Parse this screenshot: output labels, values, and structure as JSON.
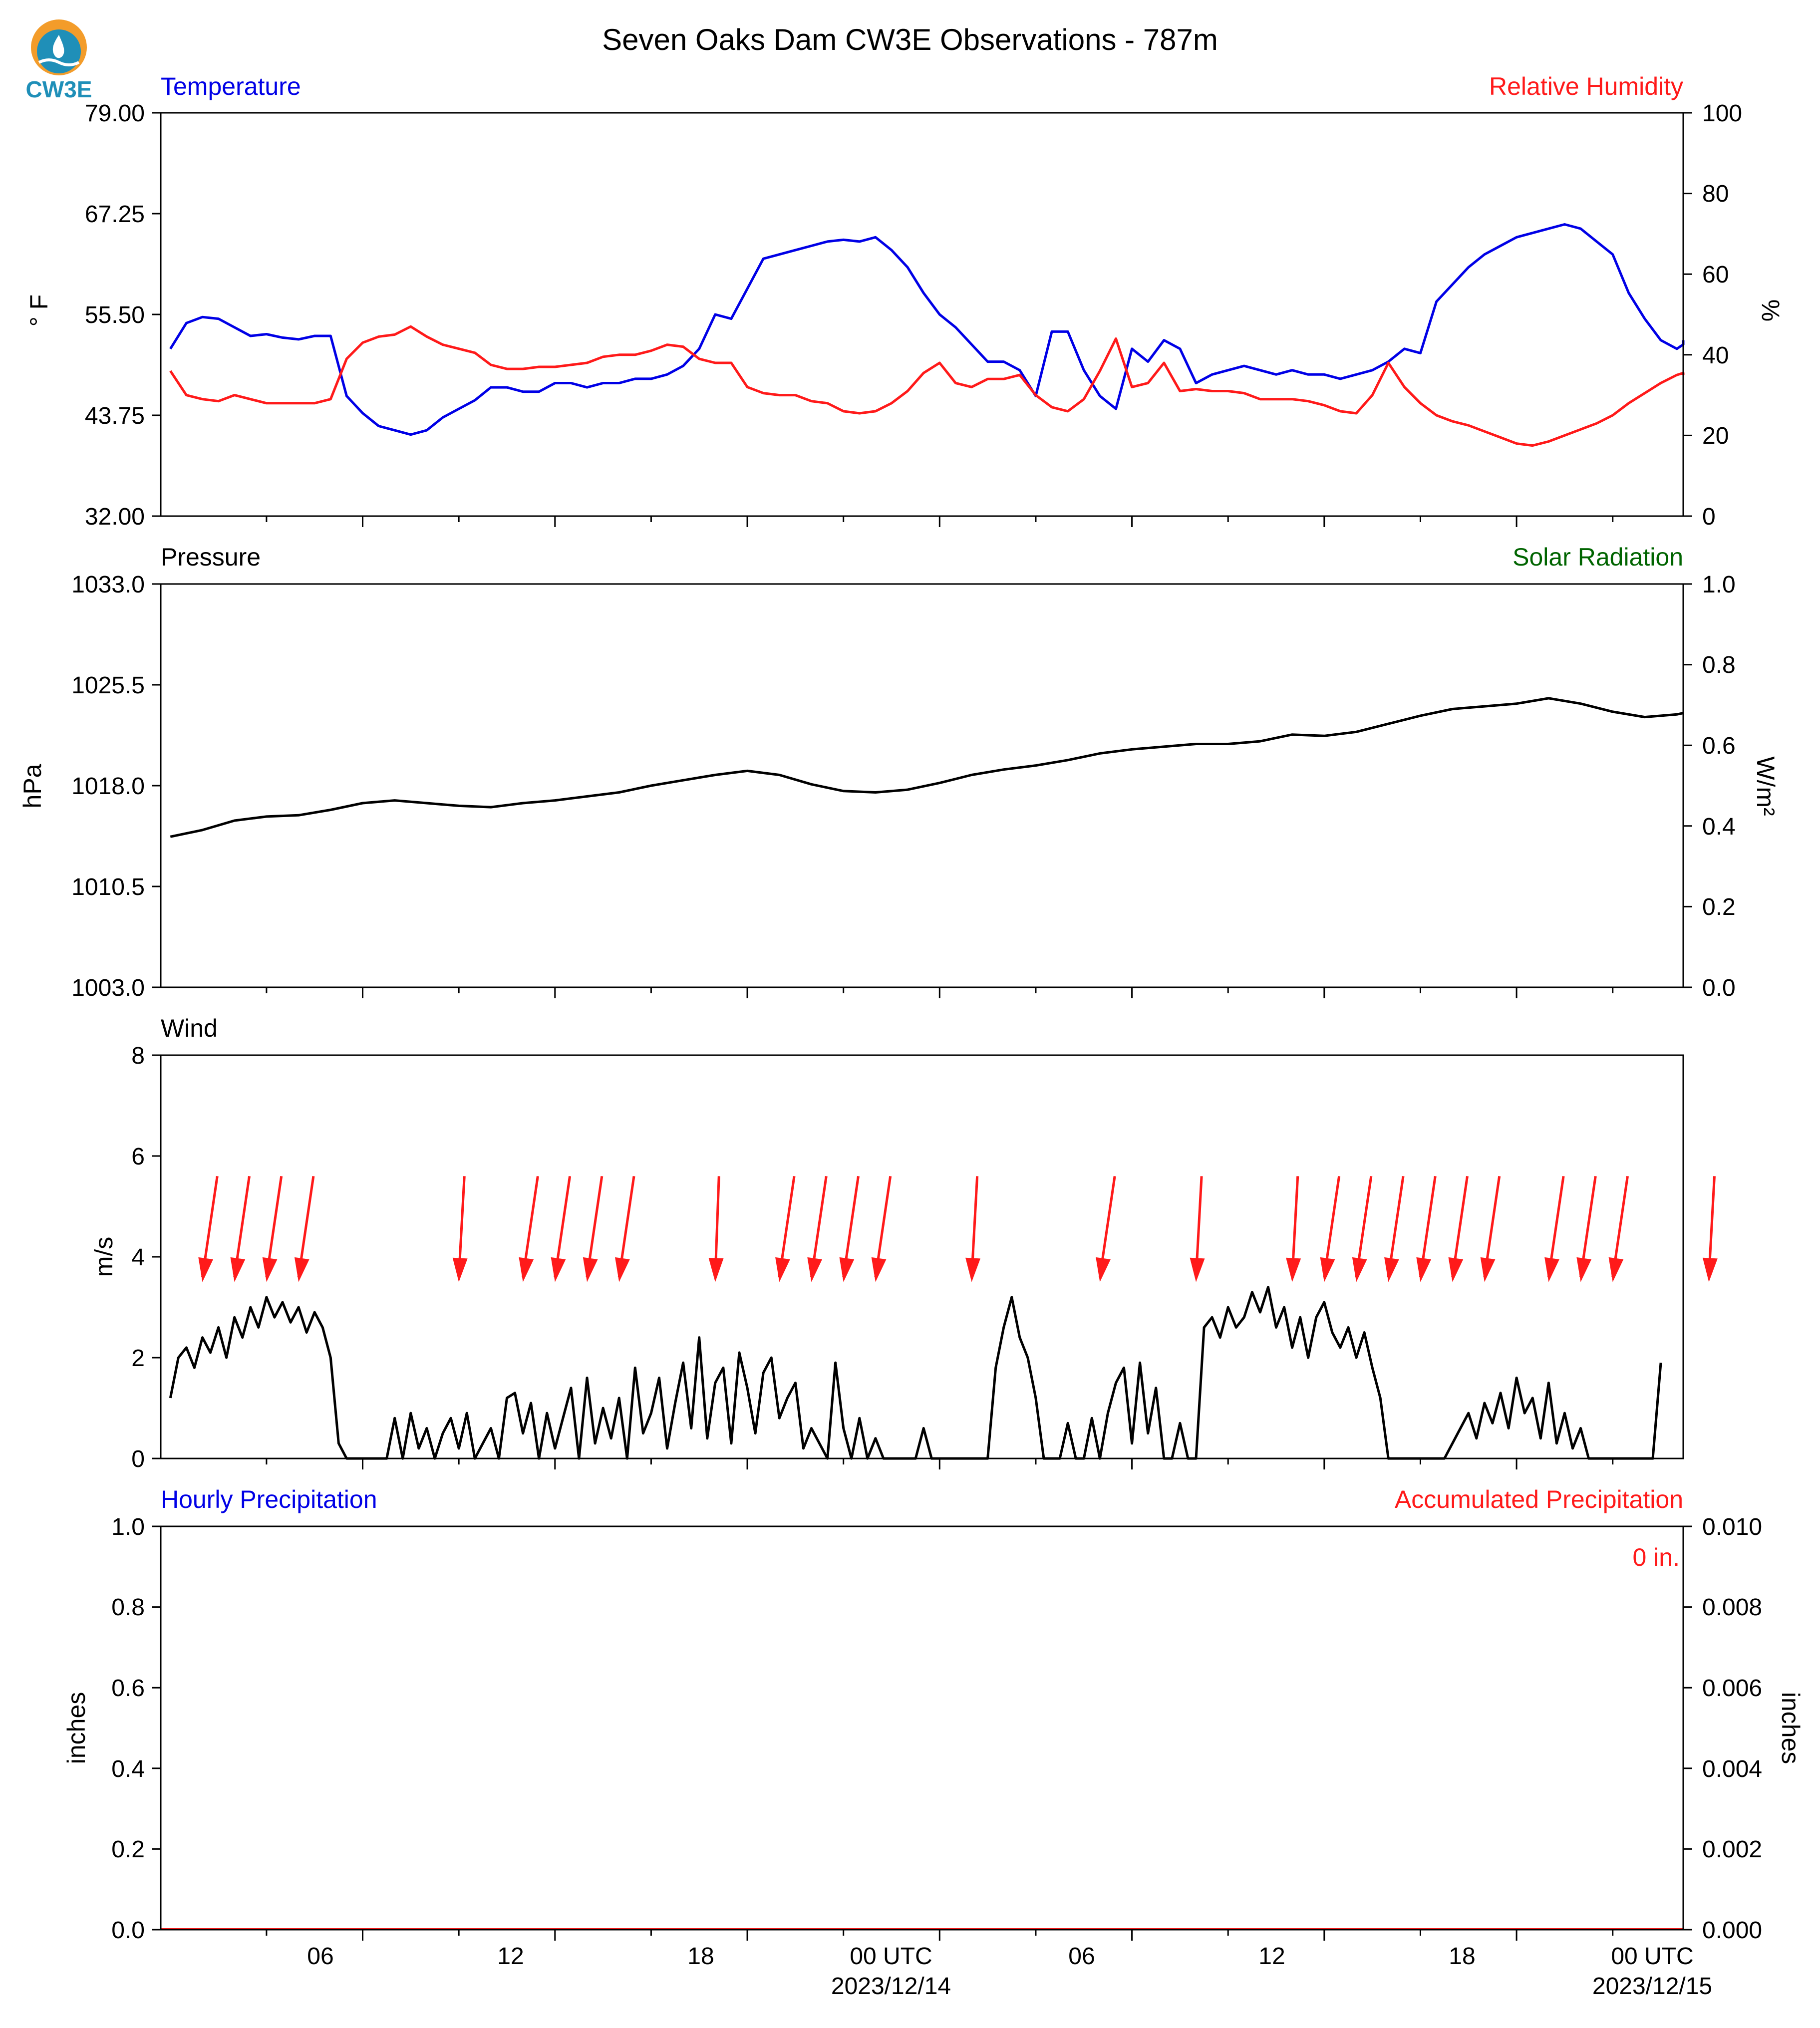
{
  "title": "Seven Oaks Dam CW3E Observations - 787m",
  "logo": {
    "text": "CW3E",
    "icon": "cw3e-water-drop-logo"
  },
  "colors": {
    "blue": "#0000e6",
    "red": "#ff1a1a",
    "green": "#006400",
    "black": "#000000",
    "arrow": "#ff1a1a",
    "logo_orange": "#f39c2a",
    "logo_teal": "#1f8fb8"
  },
  "x_axis": {
    "tick_labels": [
      "06",
      "12",
      "18",
      "00 UTC",
      "06",
      "12",
      "18",
      "00 UTC"
    ],
    "date_labels": [
      "2023/12/14",
      "2023/12/15"
    ]
  },
  "chart_data": [
    {
      "type": "line",
      "panel": "temperature-humidity",
      "title_left": "Temperature",
      "title_right": "Relative Humidity",
      "ylabel_left": "° F",
      "ylabel_right": "%",
      "ylim_left": [
        32,
        79
      ],
      "ylim_right": [
        0,
        100
      ],
      "yticks_left": [
        "79.00",
        "67.25",
        "55.50",
        "43.75",
        "32.00"
      ],
      "yticks_right": [
        "100",
        "80",
        "60",
        "40",
        "20",
        "0"
      ],
      "x_hours": [
        0,
        0.5,
        1,
        1.5,
        2,
        2.5,
        3,
        3.5,
        4,
        4.5,
        5,
        5.5,
        6,
        6.5,
        7,
        7.5,
        8,
        8.5,
        9,
        9.5,
        10,
        10.5,
        11,
        11.5,
        12,
        12.5,
        13,
        13.5,
        14,
        14.5,
        15,
        15.5,
        16,
        16.5,
        17,
        17.5,
        18,
        18.5,
        19,
        19.5,
        20,
        20.5,
        21,
        21.5,
        22,
        22.5,
        23,
        23.5,
        24,
        24.5,
        25,
        25.5,
        26,
        26.5,
        27,
        27.5,
        28,
        28.5,
        29,
        29.5,
        30,
        30.5,
        31,
        31.5,
        32,
        32.5,
        33,
        33.5,
        34,
        34.5,
        35,
        35.5,
        36,
        36.5,
        37,
        37.5,
        38,
        38.5,
        39,
        39.5,
        40,
        40.5,
        41,
        41.5,
        42,
        42.5,
        43,
        43.5,
        44,
        44.5,
        45,
        45.5,
        46,
        46.5,
        47,
        47.5,
        48
      ],
      "series": [
        {
          "name": "Temperature",
          "axis": "left",
          "color": "#0000e6",
          "values": [
            51.5,
            54.5,
            55.2,
            55.0,
            54.0,
            53.0,
            53.2,
            52.8,
            52.6,
            53.0,
            53.0,
            46.0,
            44.0,
            42.5,
            42.0,
            41.5,
            42.0,
            43.5,
            44.5,
            45.5,
            47.0,
            47.0,
            46.5,
            46.5,
            47.5,
            47.5,
            47.0,
            47.5,
            47.5,
            48.0,
            48.0,
            48.5,
            49.5,
            51.5,
            55.5,
            55.0,
            58.5,
            62.0,
            62.5,
            63.0,
            63.5,
            64.0,
            64.2,
            64.0,
            64.5,
            63.0,
            61.0,
            58.0,
            55.5,
            54.0,
            52.0,
            50.0,
            50.0,
            49.0,
            46.0,
            53.5,
            53.5,
            49.0,
            46.0,
            44.5,
            51.5,
            50.0,
            52.5,
            51.5,
            47.5,
            48.5,
            49.0,
            49.5,
            49.0,
            48.5,
            49.0,
            48.5,
            48.5,
            48.0,
            48.5,
            49.0,
            50.0,
            51.5,
            51.0,
            57.0,
            59.0,
            61.0,
            62.5,
            63.5,
            64.5,
            65.0,
            65.5,
            66.0,
            65.5,
            64.0,
            62.5,
            58.0,
            55.0,
            52.5,
            51.5,
            52.0,
            52.5
          ]
        },
        {
          "name": "Relative Humidity",
          "axis": "right",
          "color": "#ff1a1a",
          "values": [
            36.0,
            30.0,
            29.0,
            28.5,
            30.0,
            29.0,
            28.0,
            28.0,
            28.0,
            28.0,
            29.0,
            39.0,
            43.0,
            44.5,
            45.0,
            47.0,
            44.5,
            42.5,
            41.5,
            40.5,
            37.5,
            36.5,
            36.5,
            37.0,
            37.0,
            37.5,
            38.0,
            39.5,
            40.0,
            40.0,
            41.0,
            42.5,
            42.0,
            39.0,
            38.0,
            38.0,
            32.0,
            30.5,
            30.0,
            30.0,
            28.5,
            28.0,
            26.0,
            25.5,
            26.0,
            28.0,
            31.0,
            35.5,
            38.0,
            33.0,
            32.0,
            34.0,
            34.0,
            35.0,
            30.0,
            27.0,
            26.0,
            29.0,
            36.0,
            44.0,
            32.0,
            33.0,
            38.0,
            31.0,
            31.5,
            31.0,
            31.0,
            30.5,
            29.0,
            29.0,
            29.0,
            28.5,
            27.5,
            26.0,
            25.5,
            30.0,
            38.0,
            32.0,
            28.0,
            25.0,
            23.5,
            22.5,
            21.0,
            19.5,
            18.0,
            17.5,
            18.5,
            20.0,
            21.5,
            23.0,
            25.0,
            28.0,
            30.5,
            33.0,
            35.0,
            35.5,
            35.0
          ]
        }
      ]
    },
    {
      "type": "line",
      "panel": "pressure-solar",
      "title_left": "Pressure",
      "title_right": "Solar Radiation",
      "ylabel_left": "hPa",
      "ylabel_right": "W/m²",
      "ylim_left": [
        1003.0,
        1033.0
      ],
      "ylim_right": [
        0.0,
        1.0
      ],
      "yticks_left": [
        "1033.0",
        "1025.5",
        "1018.0",
        "1010.5",
        "1003.0"
      ],
      "yticks_right": [
        "1.0",
        "0.8",
        "0.6",
        "0.4",
        "0.2",
        "0.0"
      ],
      "x_hours": [
        0,
        1,
        2,
        3,
        4,
        5,
        6,
        7,
        8,
        9,
        10,
        11,
        12,
        13,
        14,
        15,
        16,
        17,
        18,
        19,
        20,
        21,
        22,
        23,
        24,
        25,
        26,
        27,
        28,
        29,
        30,
        31,
        32,
        33,
        34,
        35,
        36,
        37,
        38,
        39,
        40,
        41,
        42,
        43,
        44,
        45,
        46,
        47,
        48
      ],
      "series": [
        {
          "name": "Pressure",
          "axis": "left",
          "color": "#000000",
          "values": [
            1014.2,
            1014.7,
            1015.4,
            1015.7,
            1015.8,
            1016.2,
            1016.7,
            1016.9,
            1016.7,
            1016.5,
            1016.4,
            1016.7,
            1016.9,
            1017.2,
            1017.5,
            1018.0,
            1018.4,
            1018.8,
            1019.1,
            1018.8,
            1018.1,
            1017.6,
            1017.5,
            1017.7,
            1018.2,
            1018.8,
            1019.2,
            1019.5,
            1019.9,
            1020.4,
            1020.7,
            1020.9,
            1021.1,
            1021.1,
            1021.3,
            1021.8,
            1021.7,
            1022.0,
            1022.6,
            1023.2,
            1023.7,
            1023.9,
            1024.1,
            1024.5,
            1024.1,
            1023.5,
            1023.1,
            1023.3,
            1023.4
          ]
        }
      ]
    },
    {
      "type": "line",
      "panel": "wind",
      "title_left": "Wind",
      "ylabel_left": "m/s",
      "ylim_left": [
        0,
        8
      ],
      "yticks_left": [
        "8",
        "6",
        "4",
        "2",
        "0"
      ],
      "x_hours": [
        0,
        0.25,
        0.5,
        0.75,
        1,
        1.25,
        1.5,
        1.75,
        2,
        2.25,
        2.5,
        2.75,
        3,
        3.25,
        3.5,
        3.75,
        4,
        4.25,
        4.5,
        4.75,
        5,
        5.25,
        5.5,
        5.75,
        6,
        6.25,
        6.5,
        6.75,
        7,
        7.25,
        7.5,
        7.75,
        8,
        8.25,
        8.5,
        8.75,
        9,
        9.25,
        9.5,
        9.75,
        10,
        10.25,
        10.5,
        10.75,
        11,
        11.25,
        11.5,
        11.75,
        12,
        12.25,
        12.5,
        12.75,
        13,
        13.25,
        13.5,
        13.75,
        14,
        14.25,
        14.5,
        14.75,
        15,
        15.25,
        15.5,
        15.75,
        16,
        16.25,
        16.5,
        16.75,
        17,
        17.25,
        17.5,
        17.75,
        18,
        18.25,
        18.5,
        18.75,
        19,
        19.25,
        19.5,
        19.75,
        20,
        20.25,
        20.5,
        20.75,
        21,
        21.25,
        21.5,
        21.75,
        22,
        22.25,
        22.5,
        22.75,
        23,
        23.25,
        23.5,
        23.75,
        24,
        24.25,
        24.5,
        24.75,
        25,
        25.25,
        25.5,
        25.75,
        26,
        26.25,
        26.5,
        26.75,
        27,
        27.25,
        27.5,
        27.75,
        28,
        28.25,
        28.5,
        28.75,
        29,
        29.25,
        29.5,
        29.75,
        30,
        30.25,
        30.5,
        30.75,
        31,
        31.25,
        31.5,
        31.75,
        32,
        32.25,
        32.5,
        32.75,
        33,
        33.25,
        33.5,
        33.75,
        34,
        34.25,
        34.5,
        34.75,
        35,
        35.25,
        35.5,
        35.75,
        36,
        36.25,
        36.5,
        36.75,
        37,
        37.25,
        37.5,
        37.75,
        38,
        38.25,
        38.5,
        38.75,
        39,
        39.25,
        39.5,
        39.75,
        40,
        40.25,
        40.5,
        40.75,
        41,
        41.25,
        41.5,
        41.75,
        42,
        42.25,
        42.5,
        42.75,
        43,
        43.25,
        43.5,
        43.75,
        44,
        44.25,
        44.5,
        44.75,
        45,
        45.25,
        45.5,
        45.75,
        46,
        46.25,
        46.5,
        46.75,
        47,
        47.25,
        47.5,
        47.75,
        48
      ],
      "series": [
        {
          "name": "Wind Speed",
          "axis": "left",
          "color": "#000000",
          "values": [
            1.2,
            2.0,
            2.2,
            1.8,
            2.4,
            2.1,
            2.6,
            2.0,
            2.8,
            2.4,
            3.0,
            2.6,
            3.2,
            2.8,
            3.1,
            2.7,
            3.0,
            2.5,
            2.9,
            2.6,
            2.0,
            0.3,
            0,
            0,
            0,
            0,
            0,
            0,
            0.8,
            0,
            0.9,
            0.2,
            0.6,
            0,
            0.5,
            0.8,
            0.2,
            0.9,
            0,
            0.3,
            0.6,
            0,
            1.2,
            1.3,
            0.5,
            1.1,
            0,
            0.9,
            0.2,
            0.8,
            1.4,
            0,
            1.6,
            0.3,
            1.0,
            0.4,
            1.2,
            0,
            1.8,
            0.5,
            0.9,
            1.6,
            0.2,
            1.1,
            1.9,
            0.6,
            2.4,
            0.4,
            1.5,
            1.8,
            0.3,
            2.1,
            1.4,
            0.5,
            1.7,
            2.0,
            0.8,
            1.2,
            1.5,
            0.2,
            0.6,
            0.3,
            0,
            1.9,
            0.6,
            0,
            0.8,
            0,
            0.4,
            0,
            0,
            0,
            0,
            0,
            0.6,
            0,
            0,
            0,
            0,
            0,
            0,
            0,
            0,
            1.8,
            2.6,
            3.2,
            2.4,
            2.0,
            1.2,
            0,
            0,
            0,
            0.7,
            0,
            0,
            0.8,
            0,
            0.9,
            1.5,
            1.8,
            0.3,
            1.9,
            0.5,
            1.4,
            0,
            0,
            0.7,
            0,
            0,
            2.6,
            2.8,
            2.4,
            3.0,
            2.6,
            2.8,
            3.3,
            2.9,
            3.4,
            2.6,
            3.0,
            2.2,
            2.8,
            2.0,
            2.8,
            3.1,
            2.5,
            2.2,
            2.6,
            2.0,
            2.5,
            1.8,
            1.2,
            0,
            0,
            0,
            0,
            0,
            0,
            0,
            0,
            0.3,
            0.6,
            0.9,
            0.4,
            1.1,
            0.7,
            1.3,
            0.6,
            1.6,
            0.9,
            1.2,
            0.4,
            1.5,
            0.3,
            0.9,
            0.2,
            0.6,
            0,
            0,
            0,
            0,
            0,
            0,
            0,
            0,
            0,
            1.9
          ]
        }
      ],
      "wind_direction_arrows": {
        "x_hours": [
          1,
          2,
          3,
          4,
          9,
          11,
          12,
          13,
          14,
          17,
          19,
          20,
          21,
          22,
          25,
          29,
          32,
          35,
          36,
          37,
          38,
          39,
          40,
          41,
          43,
          44,
          45,
          48
        ],
        "head_y": 3.5,
        "tail_y": 5.6,
        "lean_deg": [
          8,
          8,
          8,
          8,
          3,
          8,
          8,
          8,
          8,
          2,
          8,
          8,
          8,
          8,
          3,
          8,
          3,
          3,
          8,
          8,
          8,
          8,
          8,
          8,
          8,
          8,
          8,
          3
        ]
      }
    },
    {
      "type": "area",
      "panel": "precipitation",
      "title_left": "Hourly Precipitation",
      "title_right": "Accumulated Precipitation",
      "ylabel_left": "inches",
      "ylabel_right": "inches",
      "ylim_left": [
        0.0,
        1.0
      ],
      "ylim_right": [
        0.0,
        0.01
      ],
      "yticks_left": [
        "1.0",
        "0.8",
        "0.6",
        "0.4",
        "0.2",
        "0.0"
      ],
      "yticks_right": [
        "0.010",
        "0.008",
        "0.006",
        "0.004",
        "0.002",
        "0.000"
      ],
      "annotation": "0 in.",
      "series": [
        {
          "name": "Hourly Precipitation",
          "axis": "left",
          "color": "#0000e6",
          "values": [
            0
          ]
        },
        {
          "name": "Accumulated Precipitation",
          "axis": "right",
          "color": "#ff1a1a",
          "values": [
            0
          ]
        }
      ]
    }
  ]
}
